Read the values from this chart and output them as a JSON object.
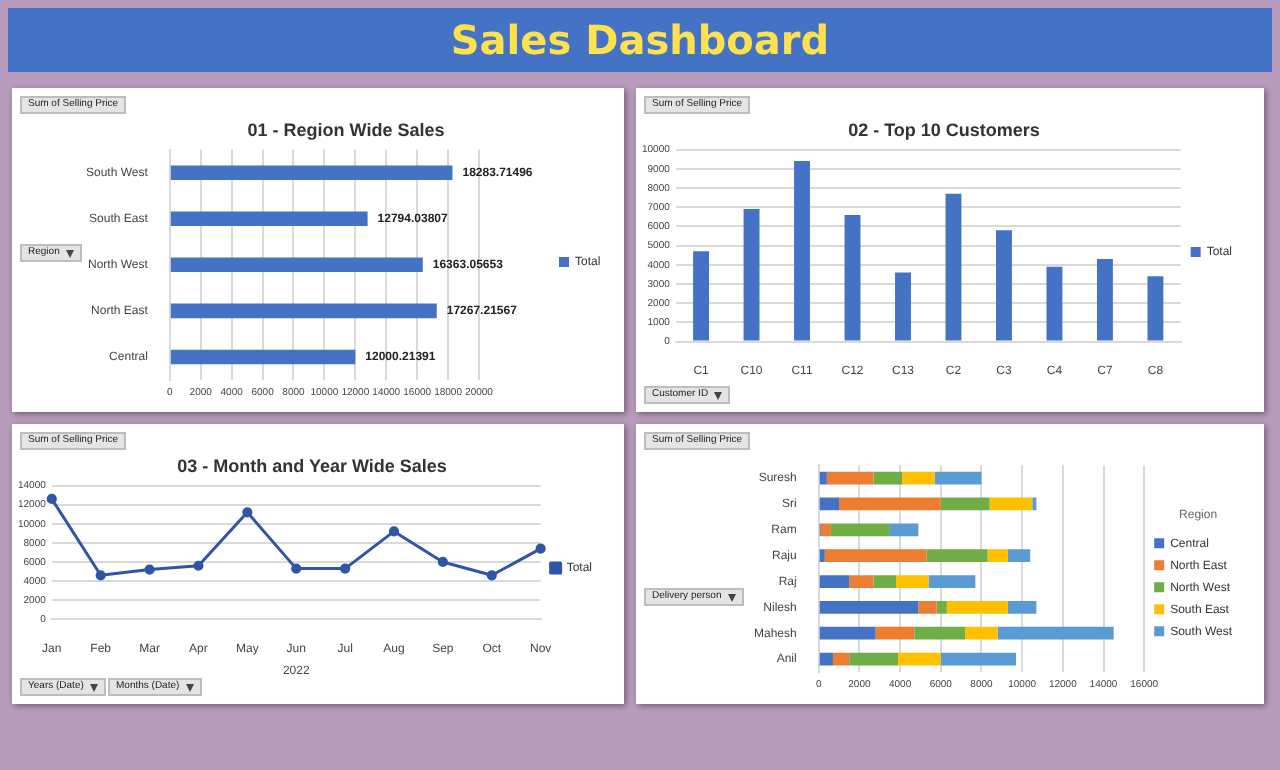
{
  "chart_data": [
    {
      "type": "other",
      "title": "Sales Dashboard"
    },
    {
      "type": "bar",
      "title": "01 - Region Wide Sales",
      "orientation": "horizontal",
      "categories": [
        "South West",
        "South East",
        "North West",
        "North East",
        "Central"
      ],
      "series": [
        {
          "name": "Total",
          "color": "#4472c4",
          "values": [
            18283.71496,
            12794.03807,
            16363.05653,
            17267.21567,
            12000.21391
          ]
        }
      ],
      "xlim": [
        0,
        20000
      ],
      "xticks": [
        0,
        2000,
        4000,
        6000,
        8000,
        10000,
        12000,
        14000,
        16000,
        18000,
        20000
      ],
      "grid": "x",
      "legend": "right",
      "data_labels": true,
      "annotations": [
        "Sum of Selling Price",
        "Region"
      ]
    },
    {
      "type": "bar",
      "title": "02 - Top 10 Customers",
      "categories": [
        "C1",
        "C10",
        "C11",
        "C12",
        "C13",
        "C2",
        "C3",
        "C4",
        "C7",
        "C8"
      ],
      "series": [
        {
          "name": "Total",
          "color": "#4472c4",
          "values": [
            4700,
            6900,
            9400,
            6600,
            3600,
            7700,
            5800,
            3900,
            4300,
            3400
          ]
        }
      ],
      "ylim": [
        0,
        10000
      ],
      "yticks": [
        0,
        1000,
        2000,
        3000,
        4000,
        5000,
        6000,
        7000,
        8000,
        9000,
        10000
      ],
      "grid": "y",
      "legend": "right",
      "annotations": [
        "Sum of Selling Price",
        "Customer ID"
      ]
    },
    {
      "type": "line",
      "title": "03 - Month and Year Wide Sales",
      "xlabel": "2022",
      "categories": [
        "Jan",
        "Feb",
        "Mar",
        "Apr",
        "May",
        "Jun",
        "Jul",
        "Aug",
        "Sep",
        "Oct",
        "Nov"
      ],
      "series": [
        {
          "name": "Total",
          "color": "#2f55a4",
          "values": [
            12600,
            4600,
            5200,
            5600,
            11200,
            5300,
            5300,
            9200,
            6000,
            4600,
            7400
          ]
        }
      ],
      "ylim": [
        0,
        14000
      ],
      "yticks": [
        0,
        2000,
        4000,
        6000,
        8000,
        10000,
        12000,
        14000
      ],
      "grid": "y",
      "legend": "right",
      "marker": "circle",
      "annotations": [
        "Sum of Selling Price",
        "Years (Date)",
        "Months (Date)"
      ]
    },
    {
      "type": "bar",
      "orientation": "horizontal",
      "stacked": true,
      "categories": [
        "Suresh",
        "Sri",
        "Ram",
        "Raju",
        "Raj",
        "Nilesh",
        "Mahesh",
        "Anil"
      ],
      "series": [
        {
          "name": "Central",
          "color": "#4472c4",
          "values": [
            400,
            1000,
            100,
            300,
            1500,
            4900,
            2800,
            700
          ]
        },
        {
          "name": "North East",
          "color": "#ed7d31",
          "values": [
            2300,
            5000,
            500,
            5000,
            1200,
            900,
            1900,
            800
          ]
        },
        {
          "name": "North West",
          "color": "#70ad47",
          "values": [
            1400,
            2400,
            2900,
            3000,
            1100,
            500,
            2500,
            2400
          ]
        },
        {
          "name": "South East",
          "color": "#ffc000",
          "values": [
            1600,
            2100,
            0,
            1000,
            1600,
            3000,
            1600,
            2100
          ]
        },
        {
          "name": "South West",
          "color": "#5b9bd5",
          "values": [
            2300,
            200,
            1400,
            1100,
            2300,
            1400,
            5700,
            3700
          ]
        }
      ],
      "xlim": [
        0,
        16000
      ],
      "xticks": [
        0,
        2000,
        4000,
        6000,
        8000,
        10000,
        12000,
        14000,
        16000
      ],
      "grid": "x",
      "legend": "right",
      "legend_title": "Region",
      "annotations": [
        "Sum of Selling Price",
        "Delivery person"
      ]
    }
  ]
}
